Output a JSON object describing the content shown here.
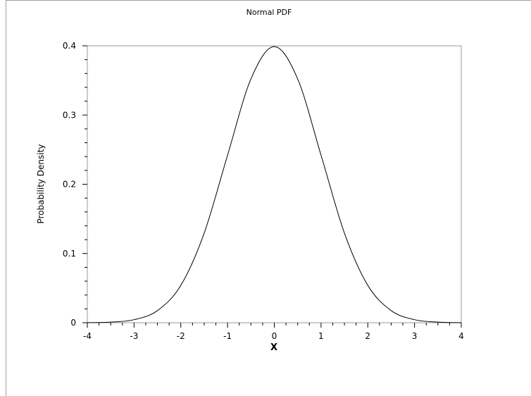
{
  "chart_data": {
    "type": "line",
    "title": "Normal PDF",
    "xlabel": "X",
    "ylabel": "Probability Density",
    "xlim": [
      -4,
      4
    ],
    "ylim": [
      0,
      0.4
    ],
    "x_ticks": [
      -4,
      -3,
      -2,
      -1,
      0,
      1,
      2,
      3,
      4
    ],
    "x_tick_labels": [
      "-4",
      "-3",
      "-2",
      "-1",
      "0",
      "1",
      "2",
      "3",
      "4"
    ],
    "y_ticks": [
      0,
      0.1,
      0.2,
      0.3,
      0.4
    ],
    "y_tick_labels": [
      "0",
      "0.1",
      "0.2",
      "0.3",
      "0.4"
    ],
    "grid": false,
    "series": [
      {
        "x": [
          -4,
          -3.5,
          -3,
          -2.5,
          -2,
          -1.5,
          -1,
          -0.5,
          0,
          0.5,
          1,
          1.5,
          2,
          2.5,
          3,
          3.5,
          4
        ],
        "y": [
          0.0001,
          0.0009,
          0.0044,
          0.0175,
          0.054,
          0.1295,
          0.242,
          0.3521,
          0.3989,
          0.3521,
          0.242,
          0.1295,
          0.054,
          0.0175,
          0.0044,
          0.0009,
          0.0001
        ]
      }
    ],
    "color": "#000000"
  }
}
